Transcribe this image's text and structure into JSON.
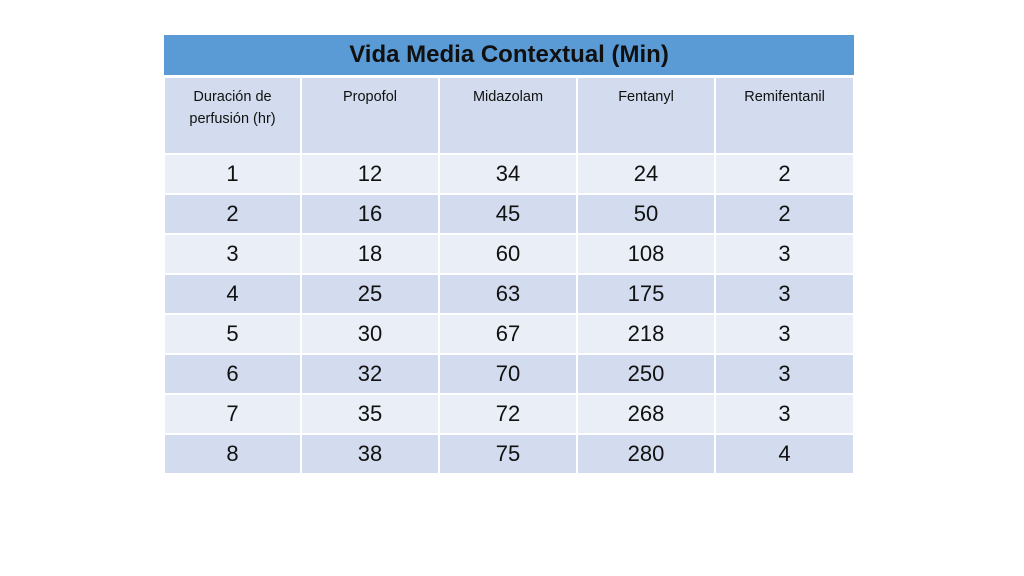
{
  "table": {
    "title": "Vida Media Contextual (Min)",
    "headers": [
      "Duración de perfusión (hr)",
      "Propofol",
      "Midazolam",
      "Fentanyl",
      "Remifentanil"
    ],
    "rows": [
      [
        "1",
        "12",
        "34",
        "24",
        "2"
      ],
      [
        "2",
        "16",
        "45",
        "50",
        "2"
      ],
      [
        "3",
        "18",
        "60",
        "108",
        "3"
      ],
      [
        "4",
        "25",
        "63",
        "175",
        "3"
      ],
      [
        "5",
        "30",
        "67",
        "218",
        "3"
      ],
      [
        "6",
        "32",
        "70",
        "250",
        "3"
      ],
      [
        "7",
        "35",
        "72",
        "268",
        "3"
      ],
      [
        "8",
        "38",
        "75",
        "280",
        "4"
      ]
    ]
  },
  "colors": {
    "title_bg": "#5b9bd5",
    "row_dark": "#d2dcee",
    "row_light": "#e9eef7"
  }
}
